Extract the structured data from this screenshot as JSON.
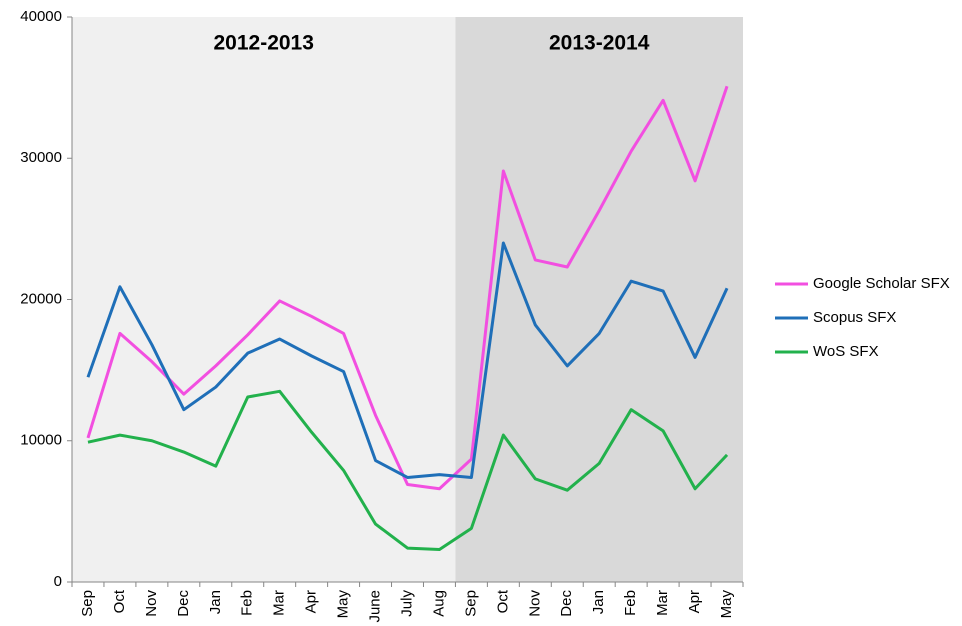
{
  "chart_data": {
    "type": "line",
    "categories": [
      "Sep",
      "Oct",
      "Nov",
      "Dec",
      "Jan",
      "Feb",
      "Mar",
      "Apr",
      "May",
      "June",
      "July",
      "Aug",
      "Sep",
      "Oct",
      "Nov",
      "Dec",
      "Jan",
      "Feb",
      "Mar",
      "Apr",
      "May"
    ],
    "periods": [
      {
        "label": "2012-2013",
        "from": 0,
        "to": 11,
        "color": "#f0f0f0"
      },
      {
        "label": "2013-2014",
        "from": 12,
        "to": 20,
        "color": "#d9d9d9"
      }
    ],
    "series": [
      {
        "name": "Google Scholar SFX",
        "color": "#f24fe0",
        "values": [
          10200,
          17600,
          15600,
          13300,
          15300,
          17500,
          19900,
          18800,
          17600,
          11800,
          6900,
          6600,
          8700,
          29100,
          22800,
          22300,
          26300,
          30500,
          34100,
          28400,
          35100
        ]
      },
      {
        "name": "Scopus SFX",
        "color": "#1f6fb8",
        "values": [
          14500,
          20900,
          16800,
          12200,
          13800,
          16200,
          17200,
          16000,
          14900,
          8600,
          7400,
          7600,
          7400,
          24000,
          18200,
          15300,
          17600,
          21300,
          20600,
          15900,
          20800
        ]
      },
      {
        "name": "WoS SFX",
        "color": "#22b14c",
        "values": [
          9900,
          10400,
          10000,
          9200,
          8200,
          13100,
          13500,
          10600,
          7900,
          4100,
          2400,
          2300,
          3800,
          10400,
          7300,
          6500,
          8400,
          12200,
          10700,
          6600,
          9000
        ]
      }
    ],
    "ylim": [
      0,
      40000
    ],
    "yticks": [
      0,
      10000,
      20000,
      30000,
      40000
    ],
    "legend": "right"
  }
}
